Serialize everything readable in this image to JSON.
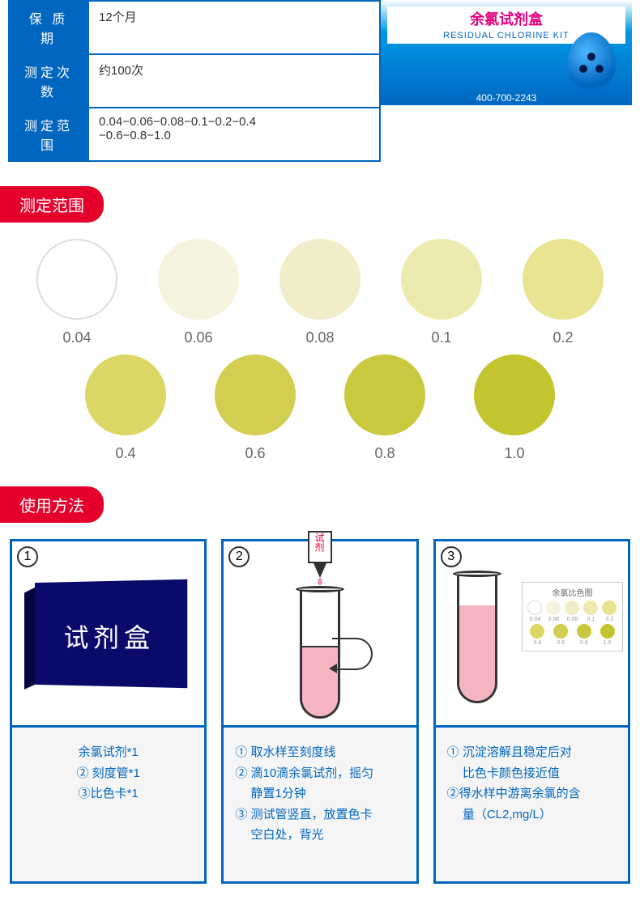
{
  "specs": [
    {
      "label": "保 质 期",
      "value": "12个月"
    },
    {
      "label": "测定次数",
      "value": "约100次"
    },
    {
      "label": "测定范围",
      "value": "0.04−0.06−0.08−0.1−0.2−0.4\n−0.6−0.8−1.0"
    }
  ],
  "product": {
    "title": "余氯试剂盒",
    "subtitle": "RESIDUAL CHLORINE KIT",
    "phone": "400-700-2243"
  },
  "sections": {
    "range": "测定范围",
    "method": "使用方法"
  },
  "colorChart": {
    "row1": [
      {
        "value": "0.04",
        "color": "#ffffff",
        "border": "#ddd"
      },
      {
        "value": "0.06",
        "color": "#f5f2de",
        "border": "none"
      },
      {
        "value": "0.08",
        "color": "#f0edc8",
        "border": "none"
      },
      {
        "value": "0.1",
        "color": "#edeab0",
        "border": "none"
      },
      {
        "value": "0.2",
        "color": "#e8e491",
        "border": "none"
      }
    ],
    "row2": [
      {
        "value": "0.4",
        "color": "#dbd765"
      },
      {
        "value": "0.6",
        "color": "#d1ce52"
      },
      {
        "value": "0.8",
        "color": "#c9c940"
      },
      {
        "value": "1.0",
        "color": "#c2c52e"
      }
    ]
  },
  "methods": [
    {
      "num": "1",
      "lines": [
        "余氯试剂*1",
        "② 刻度管*1",
        "③比色卡*1"
      ],
      "align": "center",
      "kitLabel": "试剂盒"
    },
    {
      "num": "2",
      "lines": [
        "① 取水样至刻度线",
        "② 滴10滴余氯试剂，摇匀\n　 静置1分钟",
        "③ 测试管竖直，放置色卡\n　 空白处，背光"
      ],
      "align": "left",
      "tubeFill": {
        "height": "55%",
        "color": "#f5b5c0"
      },
      "dropperLabel": "试剂"
    },
    {
      "num": "3",
      "lines": [
        "① 沉淀溶解且稳定后对\n　 比色卡颜色接近值",
        "②得水样中游离余氯的含\n　 量（CL2,mg/L）"
      ],
      "align": "left",
      "tubeFill": {
        "height": "75%",
        "color": "#f5b5c0"
      },
      "miniChart": {
        "title": "余氯比色图",
        "r1": [
          {
            "c": "#ffffff",
            "l": "0.04",
            "b": "#ddd"
          },
          {
            "c": "#f5f2de",
            "l": "0.06"
          },
          {
            "c": "#f0edc8",
            "l": "0.08"
          },
          {
            "c": "#edeab0",
            "l": "0.1"
          },
          {
            "c": "#e8e491",
            "l": "0.2"
          }
        ],
        "r2": [
          {
            "c": "#dbd765",
            "l": "0.4"
          },
          {
            "c": "#d1ce52",
            "l": "0.6"
          },
          {
            "c": "#c9c940",
            "l": "0.8"
          },
          {
            "c": "#c2c52e",
            "l": "1.0"
          }
        ]
      }
    }
  ]
}
